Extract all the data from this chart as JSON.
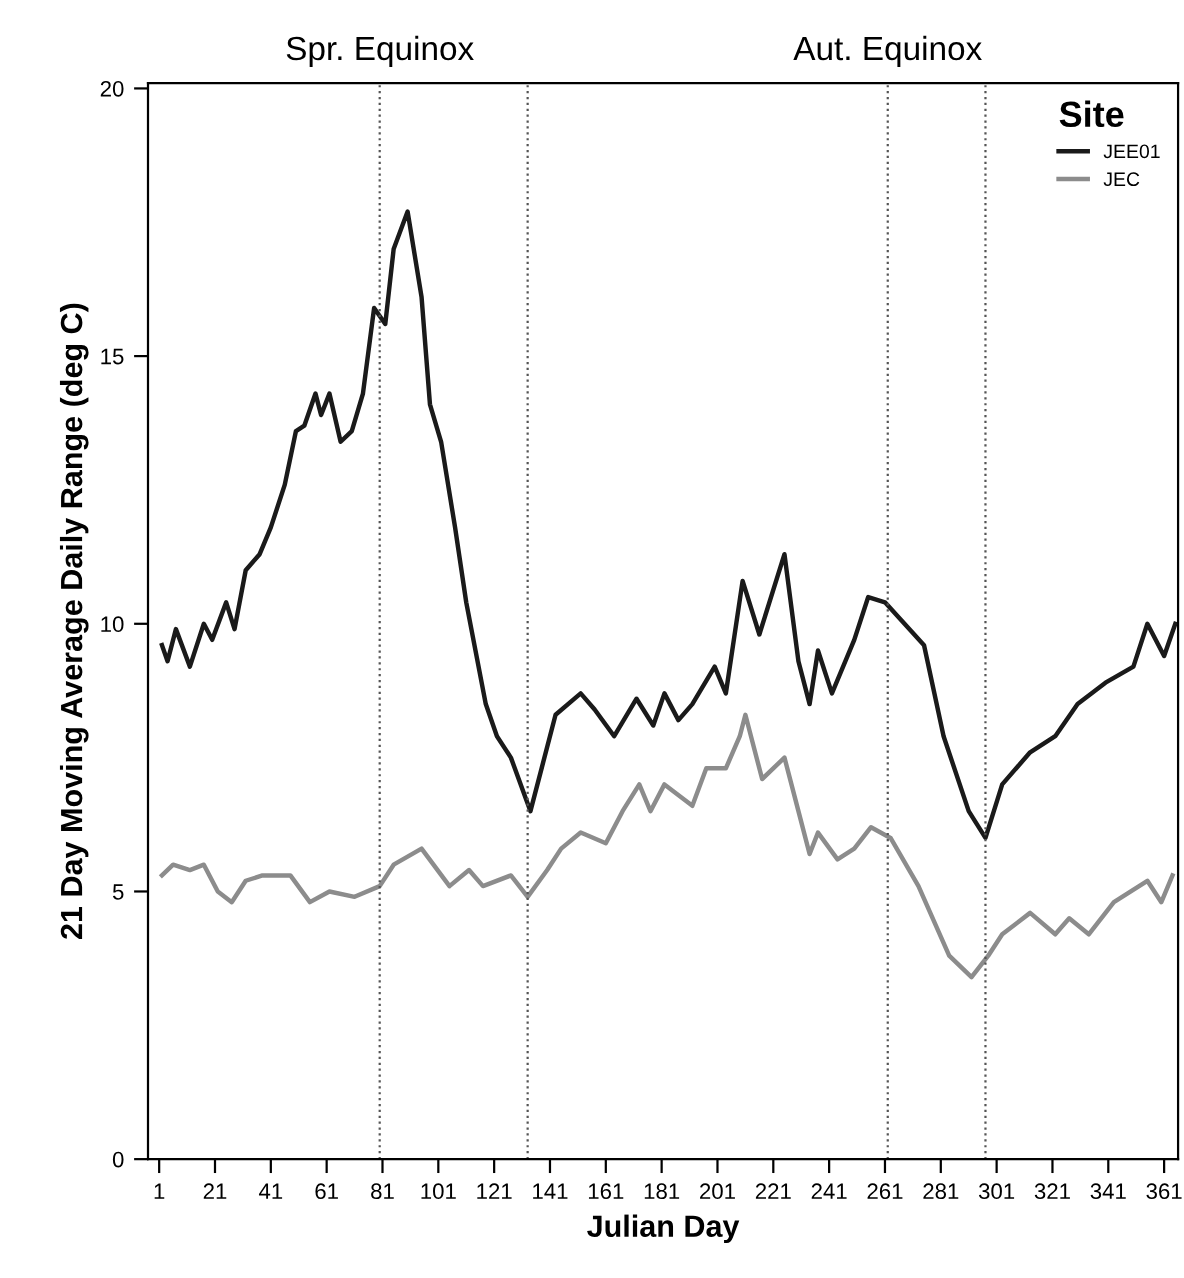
{
  "chart_data": {
    "type": "line",
    "xlabel": "Julian Day",
    "ylabel": "21 Day Moving Average Daily Range (deg C)",
    "legend_title": "Site",
    "xlim": [
      -3,
      366
    ],
    "ylim": [
      0,
      20.1
    ],
    "xticks": [
      1,
      21,
      41,
      61,
      81,
      101,
      121,
      141,
      161,
      181,
      201,
      221,
      241,
      261,
      281,
      301,
      321,
      341,
      361
    ],
    "yticks": [
      0,
      5,
      10,
      15,
      20
    ],
    "grid": false,
    "legend": "top right",
    "marker": "none",
    "line_style": "solid",
    "ref_lines": [
      {
        "axis": "x",
        "value": 80,
        "label": "Spr. Equinox",
        "color": "#555555",
        "line_style": "dotted"
      },
      {
        "axis": "x",
        "value": 133,
        "label": null,
        "color": "#555555",
        "line_style": "dotted"
      },
      {
        "axis": "x",
        "value": 262,
        "label": "Aut. Equinox",
        "color": "#555555",
        "line_style": "dotted"
      },
      {
        "axis": "x",
        "value": 297,
        "label": null,
        "color": "#555555",
        "line_style": "dotted"
      }
    ],
    "series": [
      {
        "name": "JEE01",
        "color": "#1a1a1a",
        "x": [
          2,
          4,
          7,
          12,
          17,
          20,
          25,
          28,
          32,
          37,
          41,
          46,
          50,
          53,
          57,
          59,
          62,
          66,
          70,
          74,
          78,
          82,
          85,
          90,
          95,
          98,
          102,
          107,
          111,
          118,
          122,
          127,
          134,
          138,
          143,
          152,
          157,
          164,
          172,
          178,
          182,
          187,
          192,
          200,
          204,
          210,
          216,
          225,
          230,
          234,
          237,
          242,
          250,
          255,
          261,
          268,
          275,
          282,
          291,
          297,
          303,
          313,
          322,
          330,
          340,
          350,
          355,
          361,
          365
        ],
        "values": [
          9.6,
          9.3,
          9.9,
          9.2,
          10.0,
          9.7,
          10.4,
          9.9,
          11.0,
          11.3,
          11.8,
          12.6,
          13.6,
          13.7,
          14.3,
          13.9,
          14.3,
          13.4,
          13.6,
          14.3,
          15.9,
          15.6,
          17.0,
          17.7,
          16.1,
          14.1,
          13.4,
          11.8,
          10.4,
          8.5,
          7.9,
          7.5,
          6.5,
          7.3,
          8.3,
          8.7,
          8.4,
          7.9,
          8.6,
          8.1,
          8.7,
          8.2,
          8.5,
          9.2,
          8.7,
          10.8,
          9.8,
          11.3,
          9.3,
          8.5,
          9.5,
          8.7,
          9.7,
          10.5,
          10.4,
          10.0,
          9.6,
          7.9,
          6.5,
          6.0,
          7.0,
          7.6,
          7.9,
          8.5,
          8.9,
          9.2,
          10.0,
          9.4,
          10.0
        ]
      },
      {
        "name": "JEC",
        "color": "#8c8c8c",
        "x": [
          2,
          6,
          12,
          17,
          22,
          27,
          32,
          38,
          48,
          55,
          62,
          71,
          80,
          85,
          95,
          105,
          112,
          117,
          127,
          133,
          140,
          145,
          152,
          161,
          167,
          173,
          177,
          182,
          192,
          197,
          204,
          209,
          211,
          213,
          217,
          225,
          230,
          234,
          237,
          244,
          250,
          256,
          263,
          273,
          284,
          292,
          298,
          303,
          313,
          322,
          327,
          334,
          343,
          355,
          360,
          364
        ],
        "values": [
          5.3,
          5.5,
          5.4,
          5.5,
          5.0,
          4.8,
          5.2,
          5.3,
          5.3,
          4.8,
          5.0,
          4.9,
          5.1,
          5.5,
          5.8,
          5.1,
          5.4,
          5.1,
          5.3,
          4.9,
          5.4,
          5.8,
          6.1,
          5.9,
          6.5,
          7.0,
          6.5,
          7.0,
          6.6,
          7.3,
          7.3,
          7.9,
          8.3,
          7.9,
          7.1,
          7.5,
          6.5,
          5.7,
          6.1,
          5.6,
          5.8,
          6.2,
          6.0,
          5.1,
          3.8,
          3.4,
          3.8,
          4.2,
          4.6,
          4.2,
          4.5,
          4.2,
          4.8,
          5.2,
          4.8,
          5.3
        ]
      }
    ]
  }
}
